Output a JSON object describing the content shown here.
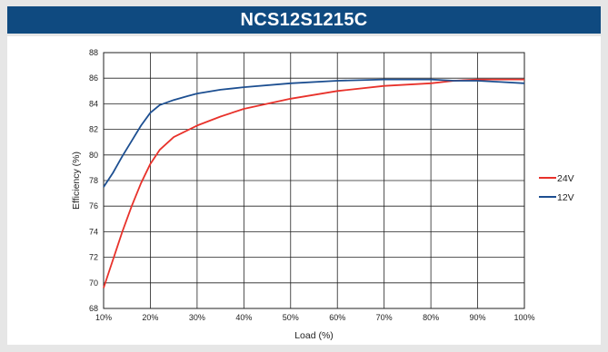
{
  "title": "NCS12S1215C",
  "chart_data": {
    "type": "line",
    "xlabel": "Load (%)",
    "ylabel": "Efficiency (%)",
    "x_ticks": [
      "10%",
      "20%",
      "30%",
      "40%",
      "50%",
      "60%",
      "70%",
      "80%",
      "90%",
      "100%"
    ],
    "y_ticks": [
      "68",
      "70",
      "72",
      "74",
      "76",
      "78",
      "80",
      "82",
      "84",
      "86",
      "88"
    ],
    "xlim": [
      10,
      100
    ],
    "ylim": [
      68,
      88
    ],
    "grid": true,
    "legend_position": "right",
    "series": [
      {
        "name": "24V",
        "color": "#e8322b",
        "x": [
          10,
          12,
          14,
          16,
          18,
          20,
          22,
          25,
          30,
          35,
          40,
          50,
          60,
          70,
          80,
          85,
          90,
          95,
          100
        ],
        "y": [
          69.6,
          71.8,
          74.0,
          76.0,
          77.8,
          79.3,
          80.4,
          81.4,
          82.3,
          83.0,
          83.6,
          84.4,
          85.0,
          85.4,
          85.6,
          85.8,
          85.9,
          85.9,
          85.9
        ]
      },
      {
        "name": "12V",
        "color": "#1d4f91",
        "x": [
          10,
          12,
          14,
          16,
          18,
          20,
          22,
          25,
          28,
          30,
          35,
          40,
          50,
          60,
          70,
          80,
          85,
          90,
          95,
          100
        ],
        "y": [
          77.5,
          78.6,
          79.9,
          81.1,
          82.3,
          83.3,
          83.9,
          84.3,
          84.6,
          84.8,
          85.1,
          85.3,
          85.6,
          85.8,
          85.9,
          85.9,
          85.8,
          85.8,
          85.7,
          85.6
        ]
      }
    ]
  }
}
